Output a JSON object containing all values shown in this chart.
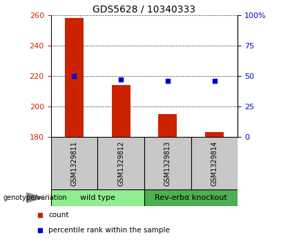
{
  "title": "GDS5628 / 10340333",
  "samples": [
    "GSM1329811",
    "GSM1329812",
    "GSM1329813",
    "GSM1329814"
  ],
  "counts": [
    258,
    214,
    195,
    183
  ],
  "percentiles": [
    50,
    47,
    46,
    46
  ],
  "ylim_left": [
    180,
    260
  ],
  "ylim_right": [
    0,
    100
  ],
  "yticks_left": [
    180,
    200,
    220,
    240,
    260
  ],
  "yticks_right": [
    0,
    25,
    50,
    75,
    100
  ],
  "ytick_labels_right": [
    "0",
    "25",
    "50",
    "75",
    "100%"
  ],
  "groups": [
    {
      "label": "wild type",
      "indices": [
        0,
        1
      ],
      "color": "#90ee90"
    },
    {
      "label": "Rev-erbα knockout",
      "indices": [
        2,
        3
      ],
      "color": "#4caf50"
    }
  ],
  "bar_color": "#cc2200",
  "dot_color": "#0000cc",
  "bar_width": 0.4,
  "background_color": "#ffffff",
  "title_fontsize": 10,
  "tick_fontsize": 8,
  "sample_fontsize": 7,
  "group_fontsize": 8,
  "legend_fontsize": 7.5
}
